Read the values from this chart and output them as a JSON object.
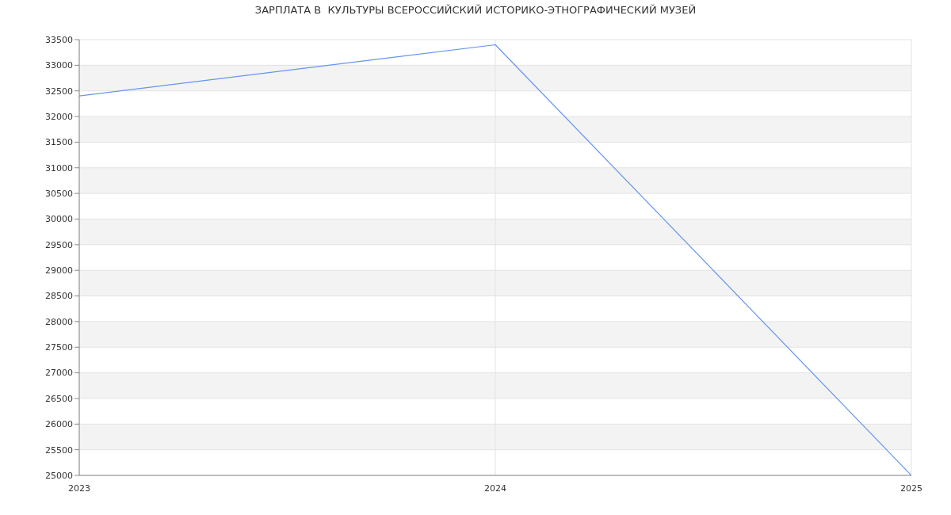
{
  "chart_data": {
    "type": "line",
    "title": "ЗАРПЛАТА В  КУЛЬТУРЫ ВСЕРОССИЙСКИЙ ИСТОРИКО-ЭТНОГРАФИЧЕСКИЙ МУЗЕЙ",
    "categories": [
      "2023",
      "2024",
      "2025"
    ],
    "series": [
      {
        "color": "#6495ed",
        "values": [
          32400,
          33400,
          25000
        ]
      }
    ],
    "ylim": [
      25000,
      33500
    ],
    "yticks": [
      25000,
      25500,
      26000,
      26500,
      27000,
      27500,
      28000,
      28500,
      29000,
      29500,
      30000,
      30500,
      31000,
      31500,
      32000,
      32500,
      33000,
      33500
    ],
    "grid": true,
    "marker": "none",
    "line_style": "solid"
  }
}
